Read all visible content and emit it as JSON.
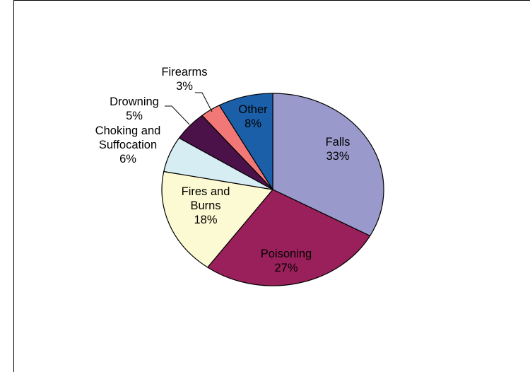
{
  "chart_data": {
    "type": "pie",
    "title": "",
    "unit": "%",
    "slices": [
      {
        "label": "Falls",
        "label_lines": [
          "Falls",
          "33%"
        ],
        "value": 33,
        "color": "#9999cc",
        "label_style": "inside"
      },
      {
        "label": "Poisoning",
        "label_lines": [
          "Poisoning",
          "27%"
        ],
        "value": 27,
        "color": "#99205a",
        "label_style": "inside"
      },
      {
        "label": "Fires and Burns",
        "label_lines": [
          "Fires and",
          "Burns",
          "18%"
        ],
        "value": 18,
        "color": "#fcfad2",
        "label_style": "inside"
      },
      {
        "label": "Choking and Suffocation",
        "label_lines": [
          "Choking and",
          "Suffocation",
          "6%"
        ],
        "value": 6,
        "color": "#d6edf3",
        "label_style": "outside"
      },
      {
        "label": "Drowning",
        "label_lines": [
          "Drowning",
          "5%"
        ],
        "value": 5,
        "color": "#4a1248",
        "label_style": "outside"
      },
      {
        "label": "Firearms",
        "label_lines": [
          "Firearms",
          "3%"
        ],
        "value": 3,
        "color": "#f27878",
        "label_style": "outside"
      },
      {
        "label": "Other",
        "label_lines": [
          "Other",
          "8%"
        ],
        "value": 8,
        "color": "#1a5fa8",
        "label_style": "inside"
      }
    ],
    "start_position": "12 o'clock",
    "direction": "clockwise",
    "legend": "none",
    "grid": false
  }
}
